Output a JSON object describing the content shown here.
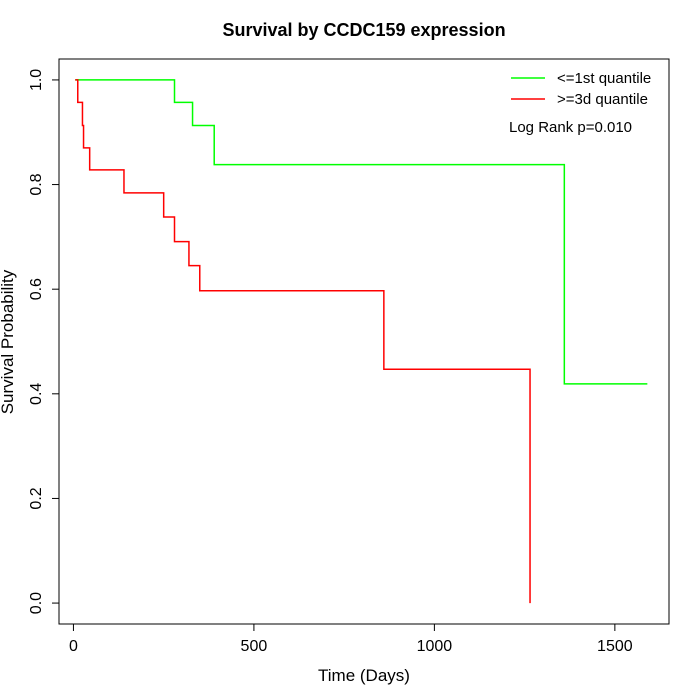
{
  "chart_data": {
    "type": "line",
    "title": "Survival by CCDC159 expression",
    "xlabel": "Time (Days)",
    "ylabel": "Survival Probability",
    "xlim": [
      -40,
      1650
    ],
    "ylim": [
      -0.04,
      1.04
    ],
    "xticks": [
      0,
      500,
      1000,
      1500
    ],
    "yticks": [
      0.0,
      0.2,
      0.4,
      0.6,
      0.8,
      1.0
    ],
    "xtick_labels": [
      "0",
      "500",
      "1000",
      "1500"
    ],
    "ytick_labels": [
      "0.0",
      "0.2",
      "0.4",
      "0.6",
      "0.8",
      "1.0"
    ],
    "grid": false,
    "legend_position": "top-right",
    "annotation": "Log Rank p=0.010",
    "series": [
      {
        "name": "<=1st quantile",
        "color": "#00ff00",
        "step_x": [
          5,
          280,
          330,
          390,
          1360,
          1590
        ],
        "step_y": [
          1.0,
          0.957,
          0.913,
          0.838,
          0.419,
          0.419
        ]
      },
      {
        "name": ">=3d quantile",
        "color": "#ff0000",
        "step_x": [
          5,
          12,
          25,
          28,
          45,
          140,
          250,
          280,
          320,
          350,
          860,
          1265
        ],
        "step_y": [
          1.0,
          0.957,
          0.913,
          0.87,
          0.828,
          0.784,
          0.738,
          0.691,
          0.645,
          0.597,
          0.447,
          0.0
        ]
      }
    ]
  }
}
